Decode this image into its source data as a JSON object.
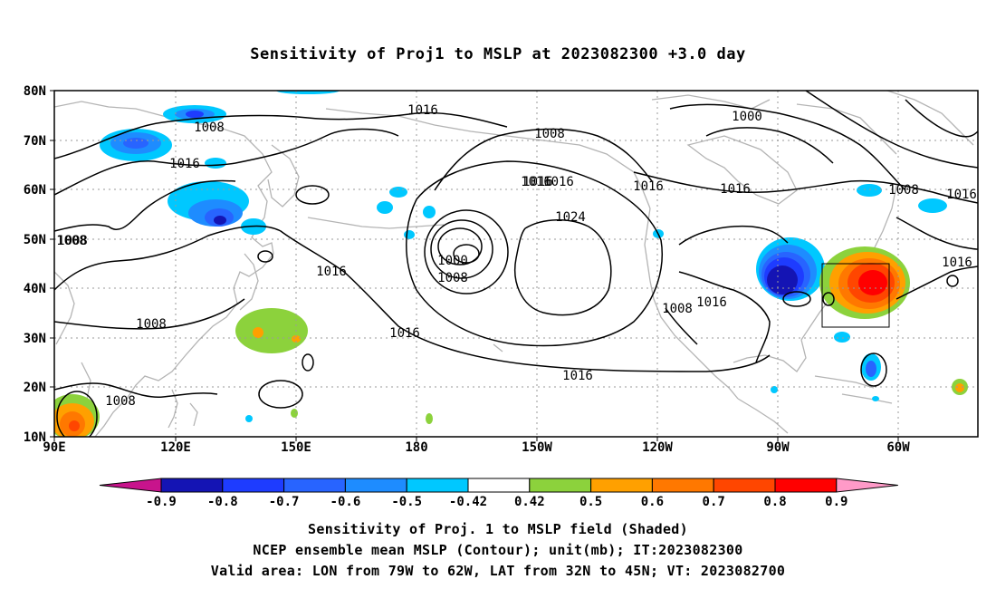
{
  "title": "Sensitivity of Proj1 to MSLP at 2023082300 +3.0 day",
  "map": {
    "lon_labels": [
      "90E",
      "120E",
      "150E",
      "180",
      "150W",
      "120W",
      "90W",
      "60W"
    ],
    "lat_labels": [
      "80N",
      "70N",
      "60N",
      "50N",
      "40N",
      "30N",
      "20N",
      "10N"
    ],
    "contour_labels": [
      "1016",
      "1008",
      "1016",
      "1008",
      "1016",
      "1016",
      "1024",
      "1000",
      "1008",
      "1016",
      "1016",
      "1008",
      "1016",
      "1000",
      "1016",
      "1016",
      "1008",
      "1008",
      "1008",
      "1016",
      "1016",
      "1008",
      "1008",
      "1016",
      "1016"
    ],
    "colors": {
      "land": "#b4b4b4",
      "contour": "#000000",
      "grid": "#9a9a9a"
    }
  },
  "colorbar": {
    "labels": [
      "-0.9",
      "-0.8",
      "-0.7",
      "-0.6",
      "-0.5",
      "-0.42",
      "0.42",
      "0.5",
      "0.6",
      "0.7",
      "0.8",
      "0.9"
    ],
    "colors": [
      "#c8148c",
      "#1414b4",
      "#1e3cff",
      "#2864ff",
      "#1e8cff",
      "#00c8ff",
      "#ffffff",
      "#8cd23c",
      "#ffa000",
      "#ff7800",
      "#ff4600",
      "#ff0000",
      "#ff9ac8"
    ]
  },
  "caption": {
    "line1": "Sensitivity of Proj. 1 to MSLP field (Shaded)",
    "line2": "NCEP ensemble mean MSLP (Contour); unit(mb); IT:2023082300",
    "line3": "Valid area: LON from 79W to 62W, LAT from 32N to 45N; VT: 2023082700"
  }
}
